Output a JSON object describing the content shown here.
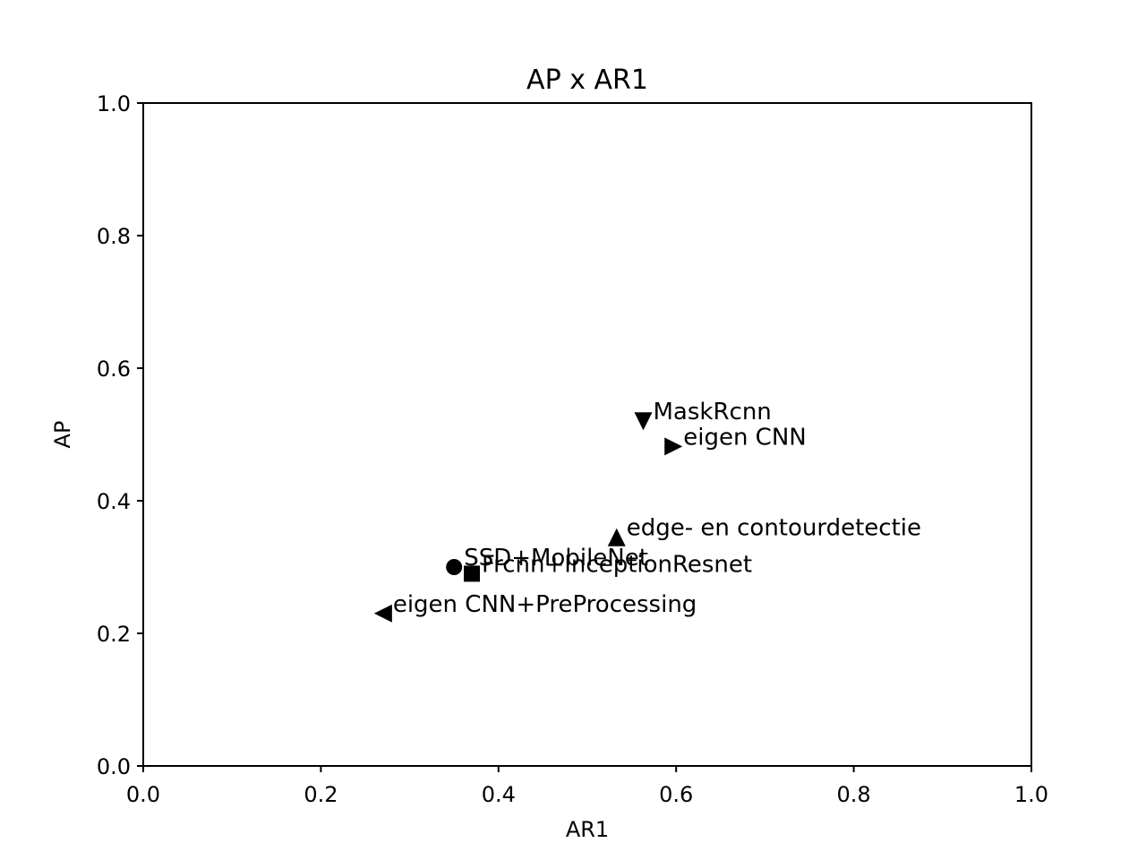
{
  "chart_data": {
    "type": "scatter",
    "title": "AP x AR1",
    "xlabel": "AR1",
    "ylabel": "AP",
    "xlim": [
      0,
      1
    ],
    "ylim": [
      0,
      1
    ],
    "xticks": [
      "0.0",
      "0.2",
      "0.4",
      "0.6",
      "0.8",
      "1.0"
    ],
    "yticks": [
      "0.0",
      "0.2",
      "0.4",
      "0.6",
      "0.8",
      "1.0"
    ],
    "grid": false,
    "legend": "none",
    "color": "#000000",
    "points": [
      {
        "label": "SSD+MobileNet",
        "x": 0.35,
        "y": 0.3,
        "marker": "circle"
      },
      {
        "label": "Frcnn+InceptionResnet",
        "x": 0.37,
        "y": 0.29,
        "marker": "square"
      },
      {
        "label": "edge- en contourdetectie",
        "x": 0.533,
        "y": 0.345,
        "marker": "triangle-up"
      },
      {
        "label": "MaskRcnn",
        "x": 0.563,
        "y": 0.52,
        "marker": "triangle-down"
      },
      {
        "label": "eigen CNN",
        "x": 0.597,
        "y": 0.482,
        "marker": "triangle-right"
      },
      {
        "label": "eigen CNN+PreProcessing",
        "x": 0.27,
        "y": 0.23,
        "marker": "triangle-left"
      }
    ]
  }
}
